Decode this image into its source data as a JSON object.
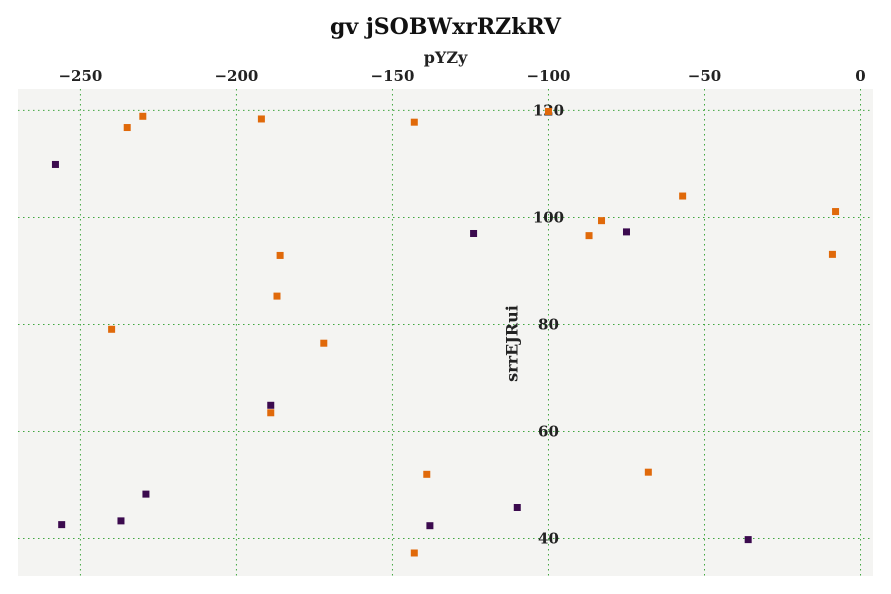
{
  "chart_data": {
    "type": "scatter",
    "title": "gv  jSOBWxrRZkRV",
    "xlabel": "pYZy",
    "ylabel": "srrEJRui",
    "xlim": [
      -270,
      4
    ],
    "ylim": [
      33,
      124
    ],
    "x_ticks": [
      -250,
      -200,
      -150,
      -100,
      -50,
      0
    ],
    "x_tick_labels": [
      "−250",
      "−200",
      "−150",
      "−100",
      "−50",
      "0"
    ],
    "y_ticks": [
      40,
      60,
      80,
      100,
      120
    ],
    "y_tick_labels": [
      "40",
      "60",
      "80",
      "100",
      "120"
    ],
    "x_axis_position": "top",
    "y_axis_position": "inside at x = -100",
    "grid": true,
    "legend": "none",
    "background_color": "#f4f4f2",
    "grid_color": "#3fa63f",
    "marker": "square",
    "series": [
      {
        "color": "#3b0a4e",
        "points": [
          [
            -258,
            109.9
          ],
          [
            -256,
            42.6
          ],
          [
            -237,
            43.3
          ],
          [
            -229,
            48.3
          ],
          [
            -189,
            64.9
          ],
          [
            -138,
            42.4
          ],
          [
            -124,
            97.0
          ],
          [
            -110,
            45.8
          ],
          [
            -75,
            97.3
          ],
          [
            -36,
            39.8
          ]
        ]
      },
      {
        "color": "#e0690a",
        "points": [
          [
            -230,
            118.9
          ],
          [
            -235,
            116.8
          ],
          [
            -192,
            118.4
          ],
          [
            -143,
            117.8
          ],
          [
            -100,
            119.8
          ],
          [
            -57,
            104.0
          ],
          [
            -83,
            99.4
          ],
          [
            -87,
            96.6
          ],
          [
            -8,
            101.1
          ],
          [
            -9,
            93.1
          ],
          [
            -186,
            92.9
          ],
          [
            -187,
            85.3
          ],
          [
            -240,
            79.1
          ],
          [
            -172,
            76.5
          ],
          [
            -189,
            63.5
          ],
          [
            -139,
            52.0
          ],
          [
            -68,
            52.4
          ],
          [
            -143,
            37.3
          ]
        ]
      }
    ]
  }
}
